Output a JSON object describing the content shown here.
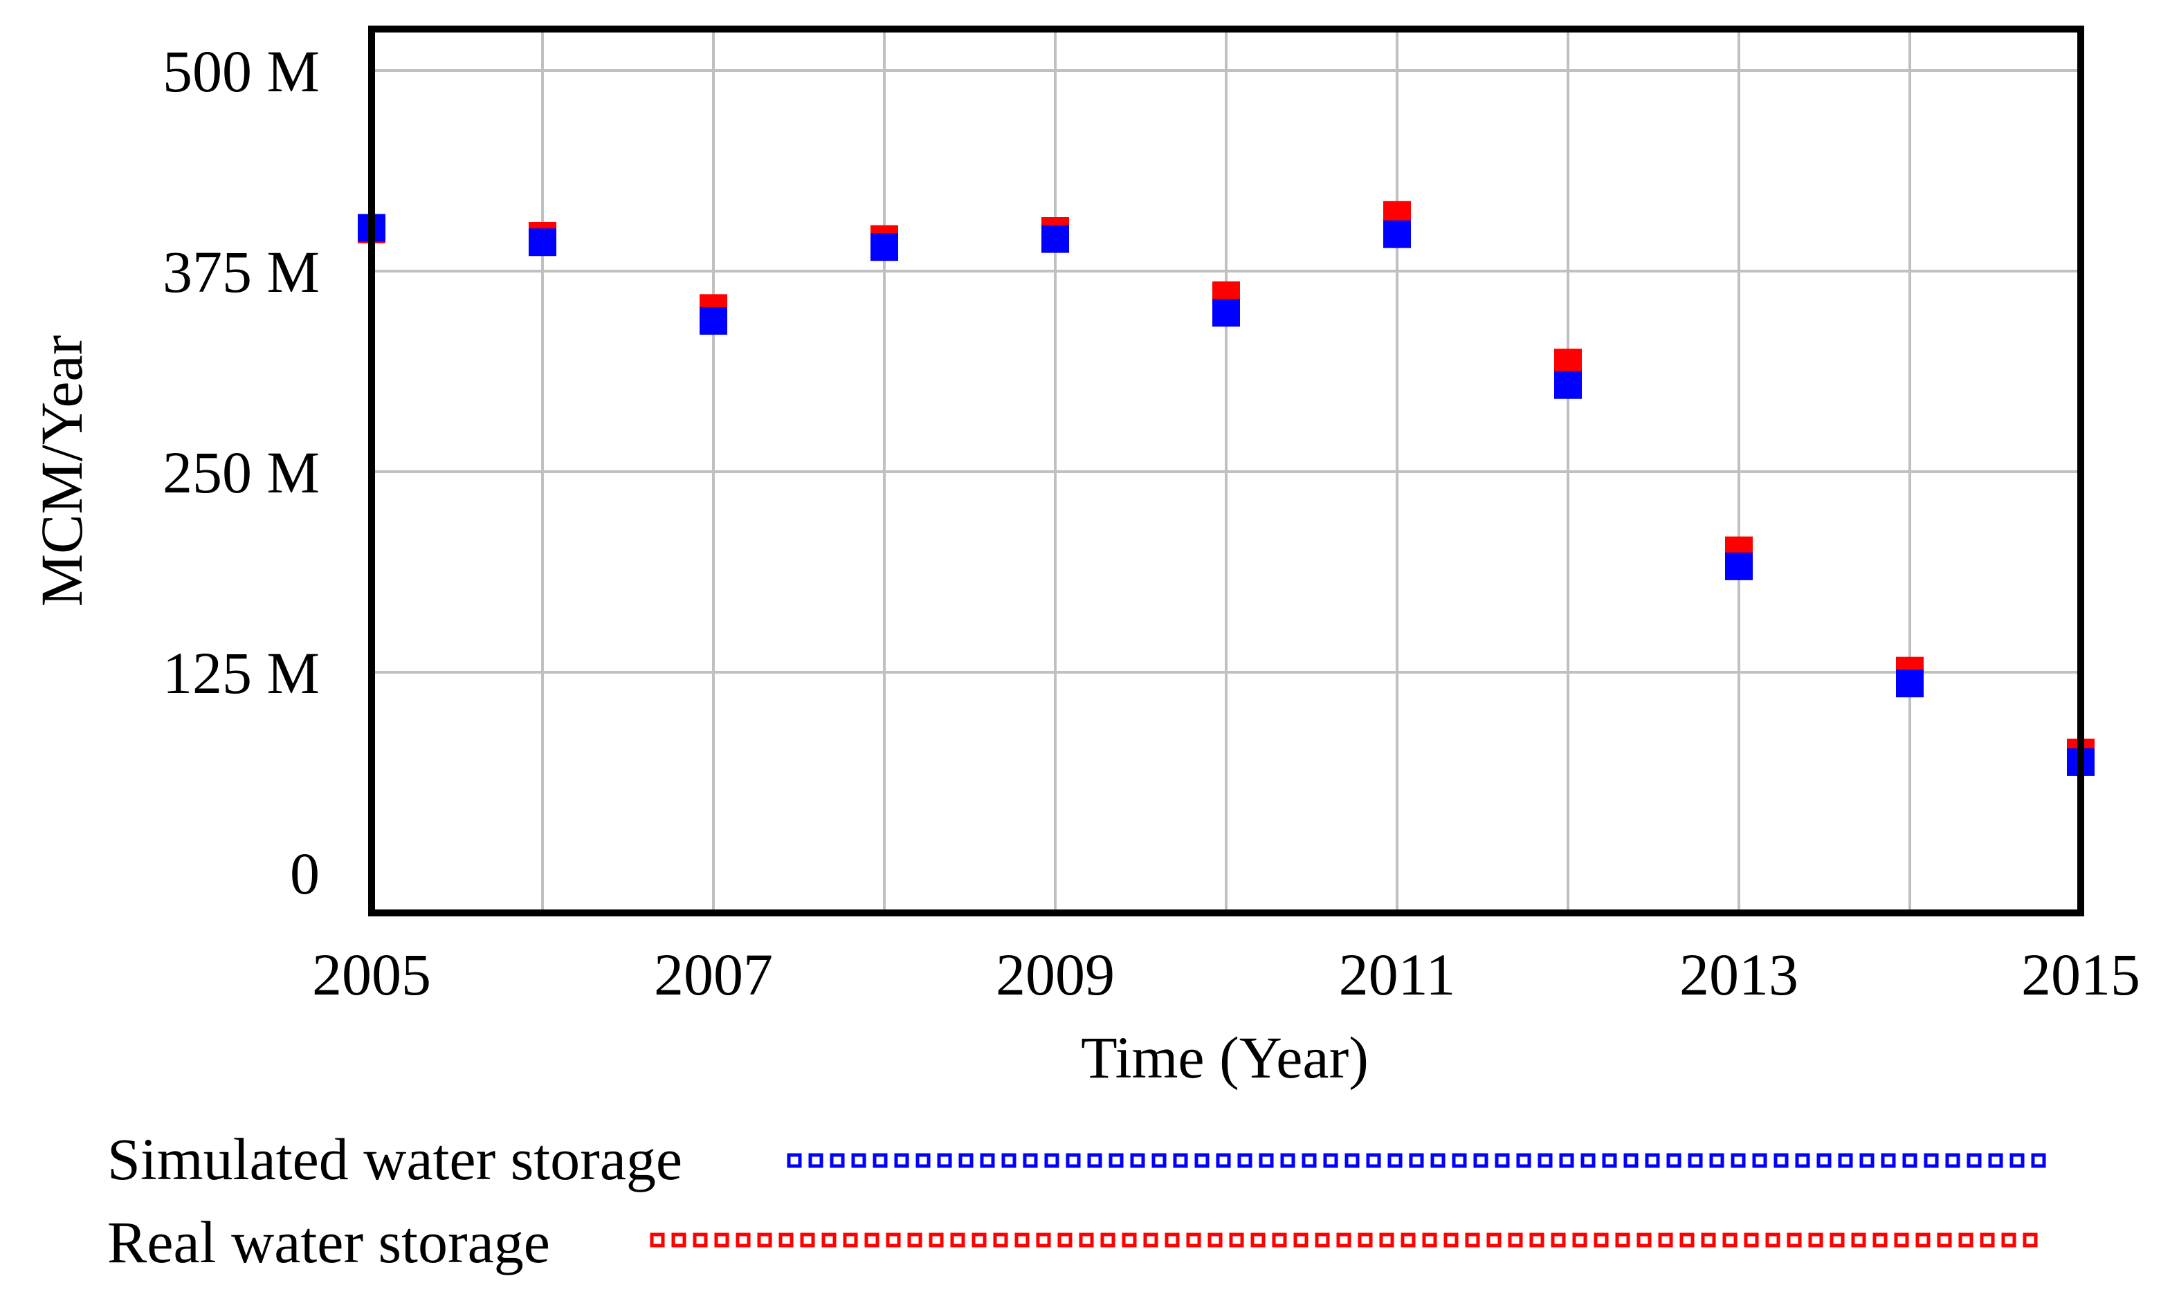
{
  "chart_data": {
    "type": "scatter",
    "title": "",
    "xlabel": "Time (Year)",
    "ylabel": "MCM/Year",
    "xlim": [
      2005,
      2015
    ],
    "ylim": [
      0,
      500
    ],
    "x_ticks": [
      2005,
      2006,
      2007,
      2008,
      2009,
      2010,
      2011,
      2012,
      2013,
      2014,
      2015
    ],
    "x_tick_labels": [
      "2005",
      "",
      "2007",
      "",
      "2009",
      "",
      "2011",
      "",
      "2013",
      "",
      "2015"
    ],
    "y_ticks": [
      0,
      125,
      250,
      375,
      500
    ],
    "y_tick_labels": [
      "0",
      "125 M",
      "250 M",
      "375 M",
      "500 M"
    ],
    "grid": true,
    "legend_position": "bottom",
    "x": [
      2005,
      2006,
      2007,
      2008,
      2009,
      2010,
      2011,
      2012,
      2013,
      2014,
      2015
    ],
    "series": [
      {
        "name": "Simulated water storage",
        "color": "#0000ff",
        "values": [
          402,
          393,
          344,
          390,
          395,
          349,
          398,
          304,
          191,
          118,
          69
        ]
      },
      {
        "name": "Real water storage",
        "color": "#ff0000",
        "values": [
          401,
          397,
          352,
          395,
          400,
          360,
          410,
          318,
          201,
          126,
          75
        ]
      }
    ],
    "legend": [
      {
        "label": "Simulated water storage",
        "color": "#0000ff"
      },
      {
        "label": "Real water storage",
        "color": "#ff0000"
      }
    ],
    "draw_order": [
      "Real water storage",
      "Simulated water storage"
    ]
  }
}
